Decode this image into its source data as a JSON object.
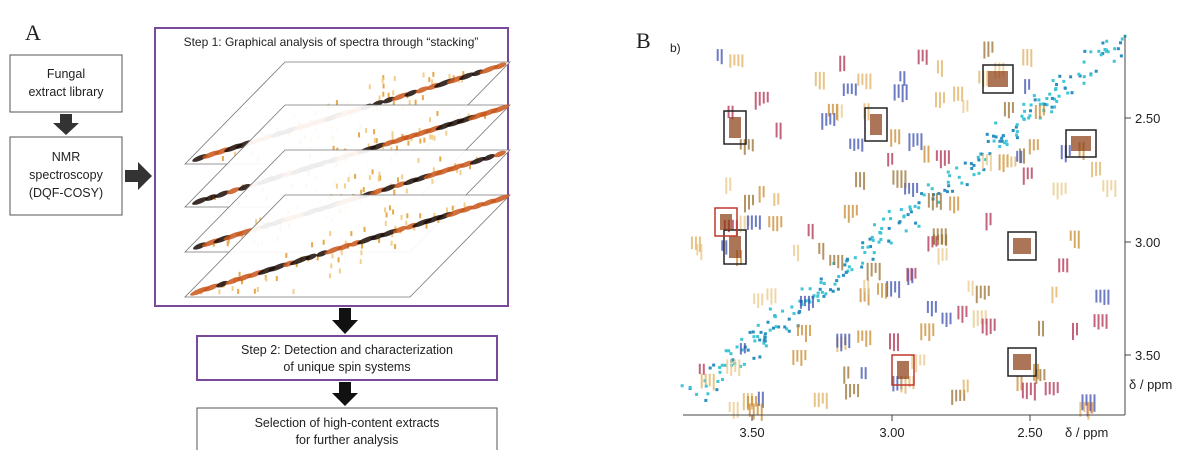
{
  "panel_a": {
    "label": "A",
    "extract_box": [
      "Fungal",
      "extract library"
    ],
    "nmr_box": [
      "NMR",
      "spectroscopy",
      "(DQF-COSY)"
    ],
    "step1_title": "Step 1: Graphical analysis of spectra through “stacking”",
    "step2_box": [
      "Step 2: Detection and characterization",
      "of unique spin systems"
    ],
    "step3_box": [
      "Selection of high-content extracts",
      "for further analysis"
    ]
  },
  "panel_b": {
    "label": "B",
    "sublabel": "b)",
    "y_ticks": [
      "2.50",
      "3.00",
      "3.50"
    ],
    "y_axis_label": "δ / ppm",
    "x_ticks": [
      "3.50",
      "3.00",
      "2.50"
    ],
    "x_axis_label": "δ / ppm"
  }
}
